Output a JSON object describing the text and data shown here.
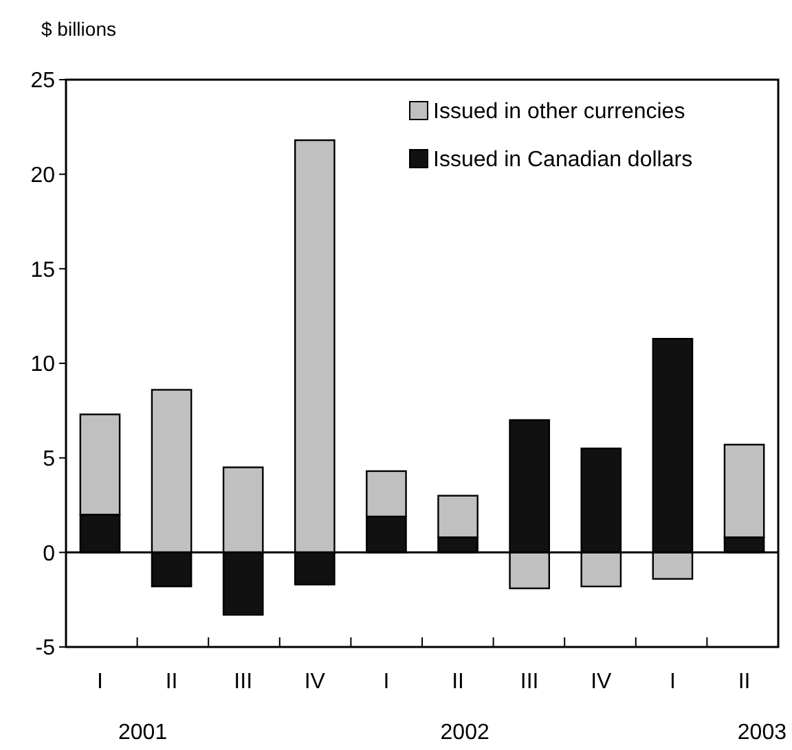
{
  "chart_data": {
    "type": "bar",
    "stacked": true,
    "ylabel": "$ billions",
    "categories": [
      "I",
      "II",
      "III",
      "IV",
      "I",
      "II",
      "III",
      "IV",
      "I",
      "II"
    ],
    "series": [
      {
        "name": "Issued in Canadian dollars",
        "color": "#111111",
        "values": [
          2.0,
          -1.8,
          -3.3,
          -1.7,
          1.9,
          0.8,
          7.0,
          5.5,
          11.3,
          0.8
        ]
      },
      {
        "name": "Issued in other currencies",
        "color": "#c0c0c0",
        "values": [
          5.3,
          8.6,
          4.5,
          21.8,
          2.4,
          2.2,
          -1.9,
          -1.8,
          -1.4,
          4.9
        ]
      }
    ],
    "ylim": [
      -5,
      25
    ],
    "yticks": [
      -5,
      0,
      5,
      10,
      15,
      20,
      25
    ],
    "ref_lines": [
      {
        "axis": "y",
        "value": 0
      }
    ],
    "legend": "top right",
    "annotations": [
      "2001",
      "2002",
      "2003"
    ]
  }
}
